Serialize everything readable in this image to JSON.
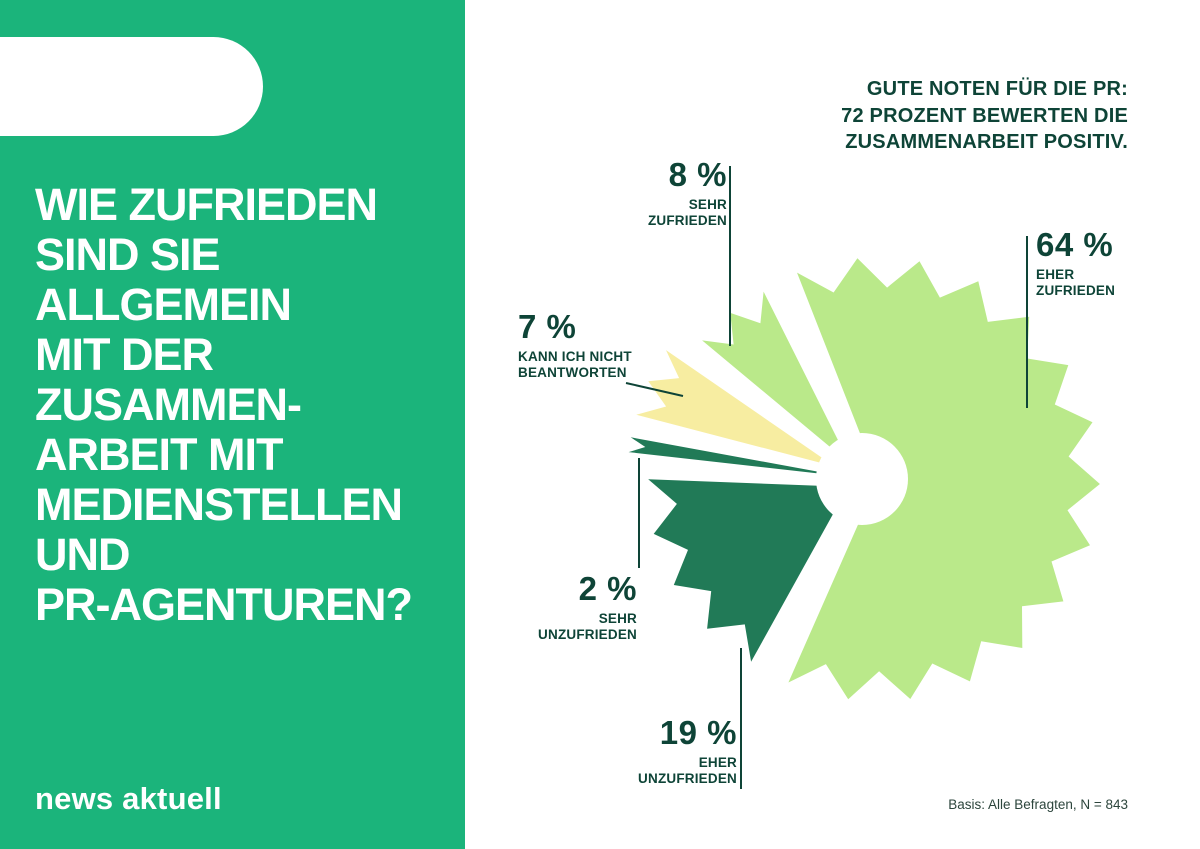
{
  "brand": {
    "panel_color": "#1bb47b",
    "logo_words": [
      "news",
      "aktuell"
    ]
  },
  "question": {
    "lines": [
      "WIE ZUFRIEDEN",
      "SIND SIE",
      "ALLGEMEIN",
      "MIT DER",
      "ZUSAMMEN-",
      "ARBEIT MIT",
      "MEDIENSTELLEN",
      "UND",
      "PR-AGENTUREN?"
    ],
    "text": "WIE ZUFRIEDEN SIND SIE ALLGEMEIN MIT DER ZUSAMMENARBEIT MIT MEDIENSTELLEN UND PR-AGENTUREN?"
  },
  "headline": {
    "lines": [
      "GUTE NOTEN FÜR DIE PR:",
      "72 PROZENT BEWERTEN DIE",
      "ZUSAMMENARBEIT POSITIV."
    ],
    "color": "#0e4437"
  },
  "footnote": "Basis: Alle Befragten, N = 843",
  "chart_data": {
    "type": "pie",
    "style": "exploded starburst donut",
    "unit": "percent",
    "title": "GUTE NOTEN FÜR DIE PR: 72 PROZENT BEWERTEN DIE ZUSAMMENARBEIT POSITIV.",
    "basis": "Basis: Alle Befragten, N = 843",
    "start_angle_deg": 336,
    "direction": "clockwise",
    "donut_hole": true,
    "colors": {
      "positive": "#bae98a",
      "negative": "#217a57",
      "neutral": "#f7eda1",
      "label_text": "#0e4437"
    },
    "slices": [
      {
        "label": "EHER ZUFRIEDEN",
        "label_lines": [
          "EHER",
          "ZUFRIEDEN"
        ],
        "value": 64,
        "display": "64 %",
        "color": "#bae98a"
      },
      {
        "label": "EHER UNZUFRIEDEN",
        "label_lines": [
          "EHER",
          "UNZUFRIEDEN"
        ],
        "value": 19,
        "display": "19 %",
        "color": "#217a57"
      },
      {
        "label": "SEHR UNZUFRIEDEN",
        "label_lines": [
          "SEHR",
          "UNZUFRIEDEN"
        ],
        "value": 2,
        "display": "2 %",
        "color": "#217a57"
      },
      {
        "label": "KANN ICH NICHT BEANTWORTEN",
        "label_lines": [
          "KANN ICH NICHT",
          "BEANTWORTEN"
        ],
        "value": 7,
        "display": "7 %",
        "color": "#f7eda1"
      },
      {
        "label": "SEHR ZUFRIEDEN",
        "label_lines": [
          "SEHR",
          "ZUFRIEDEN"
        ],
        "value": 8,
        "display": "8 %",
        "color": "#bae98a"
      }
    ]
  }
}
